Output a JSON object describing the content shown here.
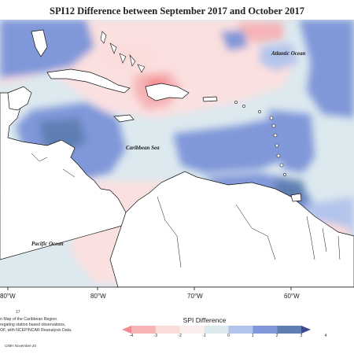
{
  "title": "SPI12 Difference between September 2017 and October 2017",
  "labels": {
    "atlantic": "Atlantic Ocean",
    "caribbean": "Caribbean Sea",
    "pacific": "Pacific Ocean"
  },
  "longitude_ticks": [
    "80°W",
    "80°W",
    "70°W",
    "60°W"
  ],
  "footer_number": "17",
  "caption_lines": [
    "n Map of the Caribbean Region.",
    "regating station based observations,",
    "OF, with NCEP/NCAR Reanalysis Data."
  ],
  "credit": "CIMH November-20",
  "legend": {
    "title": "SPI Difference",
    "ticks": [
      "-4",
      "-3",
      "-2",
      "-1",
      "0",
      "1",
      "2",
      "3",
      "4"
    ],
    "colors": [
      "#f28a8f",
      "#f6b4b6",
      "#fadcdb",
      "#fdeeee",
      "#dce9ef",
      "#b3c4ec",
      "#8097d9",
      "#5f7fb3",
      "#3b4a8e"
    ]
  },
  "map_colors": {
    "strong_dry": "#f28a8f",
    "dry": "#f6b4b6",
    "slight_dry": "#fbe0e0",
    "neutral": "#dce9ef",
    "wet": "#b3c4ec",
    "wetter": "#8097d9",
    "wettest": "#5f7fb3",
    "land": "#ffffff"
  }
}
